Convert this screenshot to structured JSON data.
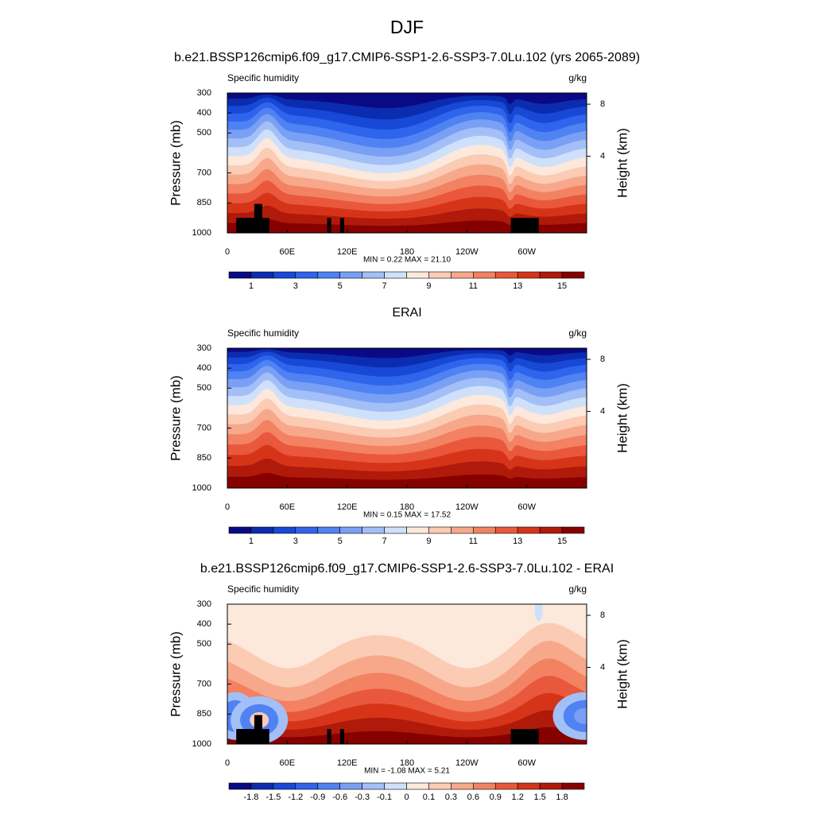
{
  "title": "DJF",
  "panels": [
    {
      "title": "b.e21.BSSP126cmip6.f09_g17.CMIP6-SSP1-2.6-SSP3-7.0Lu.102 (yrs 2065-2089)",
      "left_label": "Specific humidity",
      "right_label": "g/kg",
      "y_axis_label": "Pressure (mb)",
      "y2_axis_label": "Height (km)",
      "ylim": [
        1000,
        300
      ],
      "yticks": [
        300,
        400,
        500,
        700,
        850,
        1000
      ],
      "y2ticks": [
        8,
        4
      ],
      "xlim": [
        0,
        360
      ],
      "xticks": [
        0,
        {
          "value": 60,
          "label": "60E"
        },
        {
          "value": 120,
          "label": "120E"
        },
        180,
        {
          "value": 240,
          "label": "120W"
        },
        {
          "value": 300,
          "label": "60W"
        }
      ],
      "stats": "MIN =  0.22  MAX =  21.10",
      "colorbar": {
        "lim": [
          0,
          16
        ],
        "labels": [
          1,
          3,
          5,
          7,
          9,
          11,
          13,
          15
        ],
        "colors": [
          "#0a0a85",
          "#0c2cb0",
          "#1848d6",
          "#2f64ec",
          "#4f82f2",
          "#79a0f5",
          "#a3bff7",
          "#cfe0fa",
          "#fde8dc",
          "#fbcbb4",
          "#f7a88a",
          "#f28262",
          "#e9583c",
          "#d63418",
          "#b01a0a",
          "#870000"
        ]
      }
    },
    {
      "title": "ERAI",
      "left_label": "Specific humidity",
      "right_label": "g/kg",
      "y_axis_label": "Pressure (mb)",
      "y2_axis_label": "Height (km)",
      "ylim": [
        1000,
        300
      ],
      "yticks": [
        300,
        400,
        500,
        700,
        850,
        1000
      ],
      "y2ticks": [
        8,
        4
      ],
      "xlim": [
        0,
        360
      ],
      "xticks": [
        0,
        {
          "value": 60,
          "label": "60E"
        },
        {
          "value": 120,
          "label": "120E"
        },
        180,
        {
          "value": 240,
          "label": "120W"
        },
        {
          "value": 300,
          "label": "60W"
        }
      ],
      "stats": "MIN =  0.15  MAX =  17.52",
      "colorbar": {
        "lim": [
          0,
          16
        ],
        "labels": [
          1,
          3,
          5,
          7,
          9,
          11,
          13,
          15
        ],
        "colors": [
          "#0a0a85",
          "#0c2cb0",
          "#1848d6",
          "#2f64ec",
          "#4f82f2",
          "#79a0f5",
          "#a3bff7",
          "#cfe0fa",
          "#fde8dc",
          "#fbcbb4",
          "#f7a88a",
          "#f28262",
          "#e9583c",
          "#d63418",
          "#b01a0a",
          "#870000"
        ]
      }
    },
    {
      "title": "b.e21.BSSP126cmip6.f09_g17.CMIP6-SSP1-2.6-SSP3-7.0Lu.102 - ERAI",
      "left_label": "Specific humidity",
      "right_label": "g/kg",
      "y_axis_label": "Pressure (mb)",
      "y2_axis_label": "Height (km)",
      "ylim": [
        1000,
        300
      ],
      "yticks": [
        300,
        400,
        500,
        700,
        850,
        1000
      ],
      "y2ticks": [
        8,
        4
      ],
      "xlim": [
        0,
        360
      ],
      "xticks": [
        0,
        {
          "value": 60,
          "label": "60E"
        },
        {
          "value": 120,
          "label": "120E"
        },
        180,
        {
          "value": 240,
          "label": "120W"
        },
        {
          "value": 300,
          "label": "60W"
        }
      ],
      "stats": "MIN = -1.08  MAX =  5.21",
      "colorbar": {
        "labels": [
          -1.8,
          -1.5,
          -1.2,
          -0.9,
          -0.6,
          -0.3,
          -0.1,
          0,
          0.1,
          0.3,
          0.6,
          0.9,
          1.2,
          1.5,
          1.8
        ],
        "colors": [
          "#0a0a85",
          "#0c2cb0",
          "#1848d6",
          "#2f64ec",
          "#4f82f2",
          "#79a0f5",
          "#a3bff7",
          "#cfe0fa",
          "#fde8dc",
          "#fbcbb4",
          "#f7a88a",
          "#f28262",
          "#e9583c",
          "#d63418",
          "#b01a0a",
          "#870000"
        ]
      }
    }
  ]
}
